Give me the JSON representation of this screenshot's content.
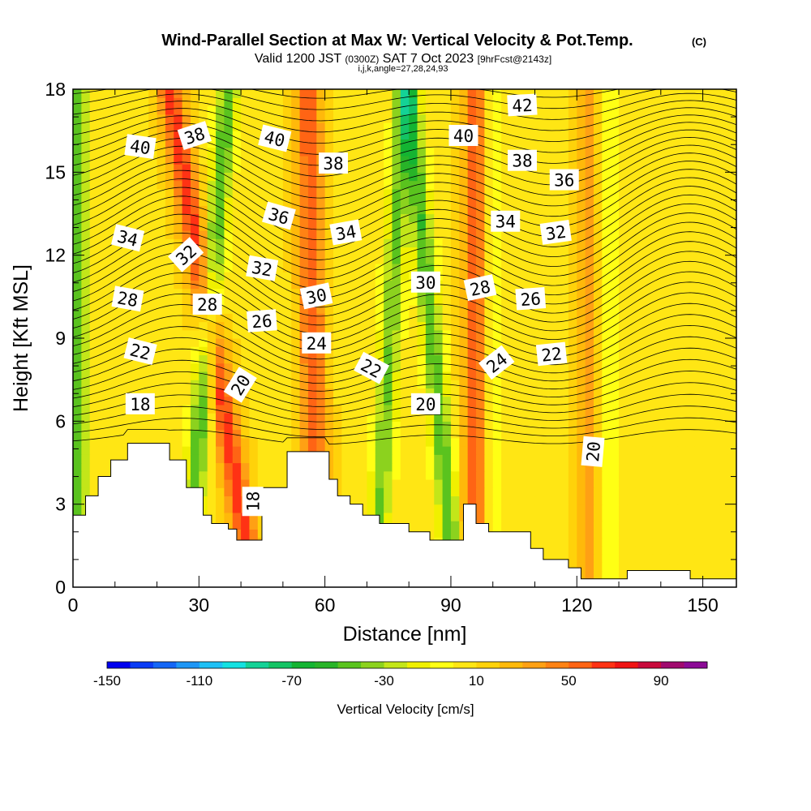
{
  "header": {
    "title": "Wind-Parallel Section at Max W: Vertical Velocity & Pot.Temp.",
    "copyright": "(C)",
    "valid_prefix": "Valid 1200 JST",
    "valid_utc": "(0300Z)",
    "valid_date": "SAT 7 Oct 2023",
    "forecast": "[9hrFcst@2143z]",
    "grid_info": "i,j,k,angle=27,28,24,93"
  },
  "chart_data": {
    "type": "heatmap",
    "xlabel": "Distance [nm]",
    "ylabel": "Height [Kft MSL]",
    "xlim": [
      0,
      158
    ],
    "ylim": [
      0,
      18
    ],
    "x_ticks": [
      "0",
      "30",
      "60",
      "90",
      "120",
      "150"
    ],
    "y_ticks": [
      "0",
      "3",
      "6",
      "9",
      "12",
      "15",
      "18"
    ],
    "colorbar": {
      "label": "Vertical Velocity [cm/s]",
      "min": -150,
      "max": 110,
      "step": 10,
      "tick_labels": [
        "-150",
        "-110",
        "-70",
        "-30",
        "10",
        "50",
        "90"
      ],
      "colors": [
        "#0000ee",
        "#0a3cf5",
        "#1466f5",
        "#1e96f5",
        "#1ec0f5",
        "#14e1e1",
        "#14d296",
        "#14c364",
        "#14b432",
        "#28b428",
        "#5ac31e",
        "#8cd21e",
        "#c3e619",
        "#f0f000",
        "#ffff14",
        "#ffe614",
        "#ffd20a",
        "#ffb90a",
        "#ffa014",
        "#ff8214",
        "#ff6414",
        "#ff3214",
        "#f01414",
        "#c80a3c",
        "#a00a6e",
        "#8c0a96"
      ]
    },
    "terrain": {
      "x": [
        0,
        3,
        6,
        9,
        13,
        19,
        23,
        27,
        31,
        33,
        35,
        37,
        39,
        42,
        45,
        48,
        51,
        58,
        61,
        63,
        66,
        69,
        71,
        73,
        77,
        80,
        83,
        85,
        88,
        93,
        96,
        99,
        105,
        109,
        112,
        118,
        121,
        131,
        132,
        141,
        147,
        151,
        158
      ],
      "height_kft": [
        2.6,
        3.3,
        4.0,
        4.6,
        5.2,
        5.2,
        4.6,
        3.6,
        2.6,
        2.3,
        2.3,
        2.1,
        1.7,
        1.7,
        3.6,
        3.6,
        4.9,
        4.9,
        3.9,
        3.3,
        3.0,
        2.6,
        2.6,
        2.3,
        2.3,
        2.0,
        2.0,
        1.7,
        1.7,
        3.0,
        2.3,
        2.0,
        2.0,
        1.4,
        1.0,
        0.7,
        0.3,
        0.3,
        0.6,
        0.6,
        0.3,
        0.3,
        0.3
      ]
    },
    "updrafts": [
      {
        "x_base": 43,
        "x_top": 23,
        "strength": 1.0
      },
      {
        "x_base": 58,
        "x_top": 56,
        "strength": 0.85
      },
      {
        "x_base": 96,
        "x_top": 96,
        "strength": 0.9
      },
      {
        "x_base": 123,
        "x_top": 123,
        "strength": 0.55
      }
    ],
    "downdrafts": [
      {
        "x_base": 1,
        "x_top": 1,
        "strength": 0.9
      },
      {
        "x_base": 27,
        "x_top": 37,
        "strength": 1.0
      },
      {
        "x_base": 72,
        "x_top": 79,
        "strength": 0.85
      },
      {
        "x_base": 91,
        "x_top": 80,
        "strength": 1.0
      },
      {
        "x_base": 100,
        "x_top": 100,
        "strength": 0.45
      },
      {
        "x_base": 127,
        "x_top": 127,
        "strength": 0.35
      }
    ],
    "isentrope_labels": [
      {
        "text": "42",
        "x": 107,
        "y": 17.4,
        "angle": -3
      },
      {
        "text": "40",
        "x": 16,
        "y": 15.9,
        "angle": 8
      },
      {
        "text": "38",
        "x": 29,
        "y": 16.3,
        "angle": -18
      },
      {
        "text": "40",
        "x": 48,
        "y": 16.2,
        "angle": 14
      },
      {
        "text": "40",
        "x": 93,
        "y": 16.3,
        "angle": 0
      },
      {
        "text": "38",
        "x": 62,
        "y": 15.3,
        "angle": 0
      },
      {
        "text": "38",
        "x": 107,
        "y": 15.4,
        "angle": 0
      },
      {
        "text": "36",
        "x": 117,
        "y": 14.7,
        "angle": 0
      },
      {
        "text": "36",
        "x": 49,
        "y": 13.4,
        "angle": 16
      },
      {
        "text": "34",
        "x": 13,
        "y": 12.6,
        "angle": 14
      },
      {
        "text": "34",
        "x": 65,
        "y": 12.8,
        "angle": -10
      },
      {
        "text": "34",
        "x": 103,
        "y": 13.2,
        "angle": 0
      },
      {
        "text": "32",
        "x": 27,
        "y": 12.0,
        "angle": -42
      },
      {
        "text": "32",
        "x": 45,
        "y": 11.5,
        "angle": 10
      },
      {
        "text": "32",
        "x": 115,
        "y": 12.8,
        "angle": -8
      },
      {
        "text": "30",
        "x": 84,
        "y": 11.0,
        "angle": 0
      },
      {
        "text": "28",
        "x": 97,
        "y": 10.8,
        "angle": -12
      },
      {
        "text": "30",
        "x": 58,
        "y": 10.5,
        "angle": -12
      },
      {
        "text": "28",
        "x": 13,
        "y": 10.4,
        "angle": 10
      },
      {
        "text": "28",
        "x": 32,
        "y": 10.2,
        "angle": 0
      },
      {
        "text": "26",
        "x": 109,
        "y": 10.4,
        "angle": -4
      },
      {
        "text": "26",
        "x": 45,
        "y": 9.6,
        "angle": -4
      },
      {
        "text": "24",
        "x": 58,
        "y": 8.8,
        "angle": 0
      },
      {
        "text": "22",
        "x": 16,
        "y": 8.5,
        "angle": 14
      },
      {
        "text": "22",
        "x": 71,
        "y": 7.9,
        "angle": 28
      },
      {
        "text": "24",
        "x": 101,
        "y": 8.1,
        "angle": -38
      },
      {
        "text": "22",
        "x": 114,
        "y": 8.4,
        "angle": -6
      },
      {
        "text": "20",
        "x": 40,
        "y": 7.3,
        "angle": -58
      },
      {
        "text": "18",
        "x": 16,
        "y": 6.6,
        "angle": 0
      },
      {
        "text": "20",
        "x": 84,
        "y": 6.6,
        "angle": 0
      },
      {
        "text": "20",
        "x": 124,
        "y": 4.9,
        "angle": -85
      },
      {
        "text": "18",
        "x": 43,
        "y": 3.1,
        "angle": -90
      }
    ]
  }
}
